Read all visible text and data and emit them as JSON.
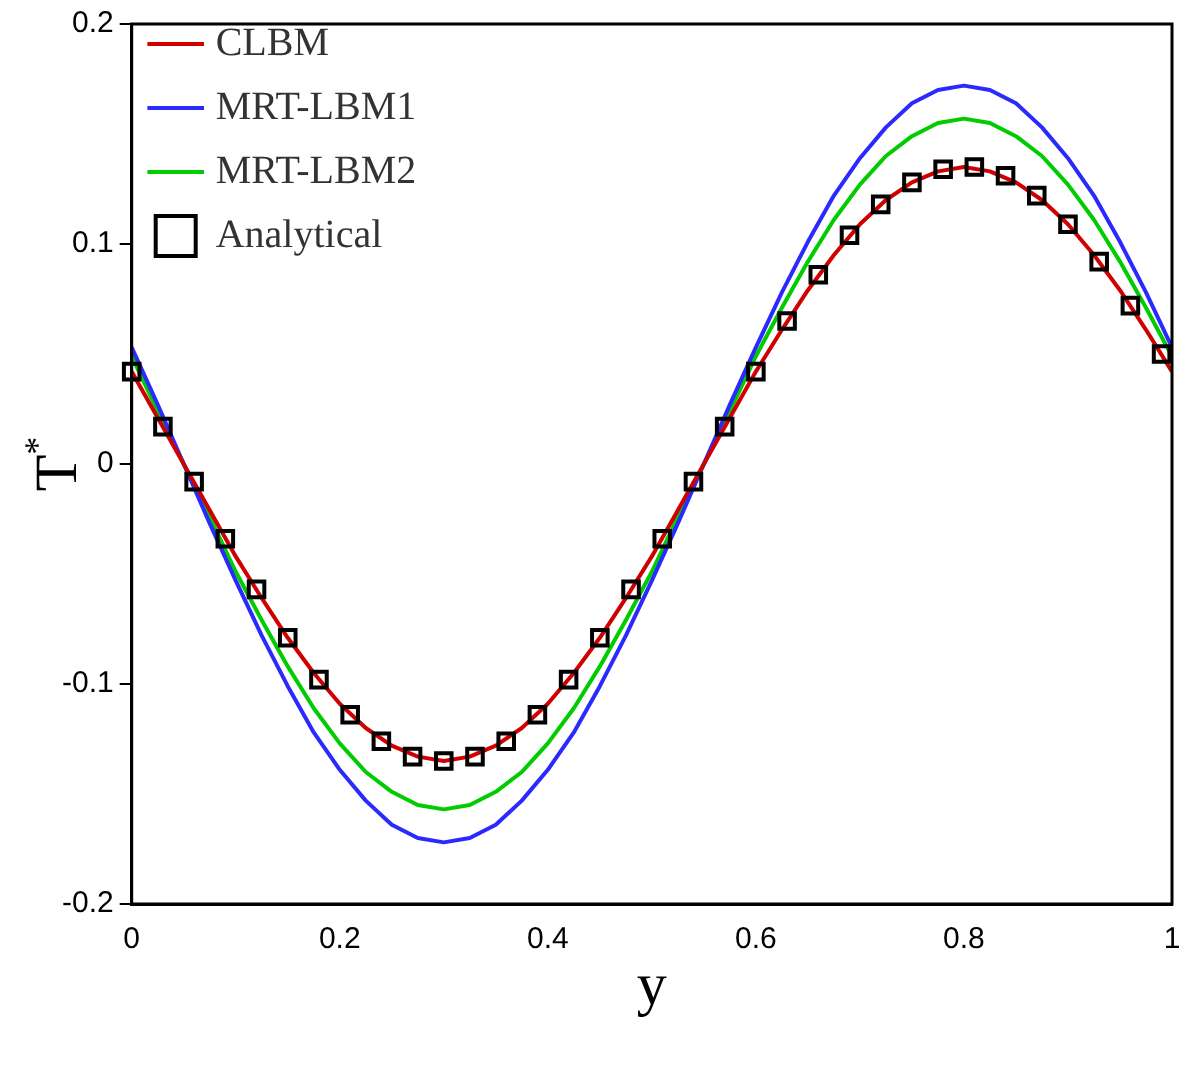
{
  "chart_data": {
    "type": "line",
    "xlabel": "y",
    "ylabel": "T$^{*}$",
    "xlim": [
      0,
      1
    ],
    "ylim": [
      -0.2,
      0.2
    ],
    "xticks": [
      0,
      0.2,
      0.4,
      0.6,
      0.8,
      1
    ],
    "yticks": [
      -0.2,
      -0.1,
      0,
      0.1,
      0.2
    ],
    "grid": false,
    "legend": "top left",
    "x": [
      0,
      0.025,
      0.05,
      0.075,
      0.1,
      0.125,
      0.15,
      0.175,
      0.2,
      0.225,
      0.25,
      0.275,
      0.3,
      0.325,
      0.35,
      0.375,
      0.4,
      0.425,
      0.45,
      0.475,
      0.5,
      0.525,
      0.55,
      0.575,
      0.6,
      0.625,
      0.65,
      0.675,
      0.7,
      0.725,
      0.75,
      0.775,
      0.8,
      0.825,
      0.85,
      0.875,
      0.9,
      0.925,
      0.95,
      0.975,
      1
    ],
    "series": [
      {
        "name": "CLBM",
        "type": "line",
        "color": "#d00000",
        "values": [
          0.042,
          0.021,
          0,
          -0.021,
          -0.042,
          -0.061,
          -0.079,
          -0.095,
          -0.109,
          -0.12,
          -0.128,
          -0.133,
          -0.135,
          -0.133,
          -0.128,
          -0.12,
          -0.109,
          -0.095,
          -0.079,
          -0.061,
          -0.042,
          -0.021,
          0,
          0.021,
          0.042,
          0.061,
          0.079,
          0.095,
          0.109,
          0.12,
          0.128,
          0.133,
          0.135,
          0.133,
          0.128,
          0.12,
          0.109,
          0.095,
          0.079,
          0.061,
          0.042
        ]
      },
      {
        "name": "MRT-LBM1",
        "type": "line",
        "color": "#2a2aff",
        "values": [
          0.053,
          0.027,
          0,
          -0.027,
          -0.053,
          -0.078,
          -0.101,
          -0.122,
          -0.139,
          -0.153,
          -0.164,
          -0.17,
          -0.172,
          -0.17,
          -0.164,
          -0.153,
          -0.139,
          -0.122,
          -0.101,
          -0.078,
          -0.053,
          -0.027,
          0,
          0.027,
          0.053,
          0.078,
          0.101,
          0.122,
          0.139,
          0.153,
          0.164,
          0.17,
          0.172,
          0.17,
          0.164,
          0.153,
          0.139,
          0.122,
          0.101,
          0.078,
          0.053
        ]
      },
      {
        "name": "MRT-LBM2",
        "type": "line",
        "color": "#00cc00",
        "values": [
          0.049,
          0.024,
          0,
          -0.024,
          -0.049,
          -0.071,
          -0.092,
          -0.111,
          -0.127,
          -0.14,
          -0.149,
          -0.155,
          -0.157,
          -0.155,
          -0.149,
          -0.14,
          -0.127,
          -0.111,
          -0.092,
          -0.071,
          -0.049,
          -0.024,
          0,
          0.024,
          0.049,
          0.071,
          0.092,
          0.111,
          0.127,
          0.14,
          0.149,
          0.155,
          0.157,
          0.155,
          0.149,
          0.14,
          0.127,
          0.111,
          0.092,
          0.071,
          0.049
        ]
      },
      {
        "name": "Analytical",
        "type": "scatter",
        "marker": "square",
        "color": "#000000",
        "x": [
          0,
          0.03,
          0.06,
          0.09,
          0.12,
          0.15,
          0.18,
          0.21,
          0.24,
          0.27,
          0.3,
          0.33,
          0.36,
          0.39,
          0.42,
          0.45,
          0.48,
          0.51,
          0.54,
          0.57,
          0.6,
          0.63,
          0.66,
          0.69,
          0.72,
          0.75,
          0.78,
          0.81,
          0.84,
          0.87,
          0.9,
          0.93,
          0.96,
          0.99
        ],
        "values": [
          0.042,
          0.017,
          -0.008,
          -0.034,
          -0.057,
          -0.079,
          -0.098,
          -0.114,
          -0.126,
          -0.133,
          -0.135,
          -0.133,
          -0.126,
          -0.114,
          -0.098,
          -0.079,
          -0.057,
          -0.034,
          -0.008,
          0.017,
          0.042,
          0.065,
          0.086,
          0.104,
          0.118,
          0.128,
          0.134,
          0.135,
          0.131,
          0.122,
          0.109,
          0.092,
          0.072,
          0.05
        ]
      }
    ]
  }
}
